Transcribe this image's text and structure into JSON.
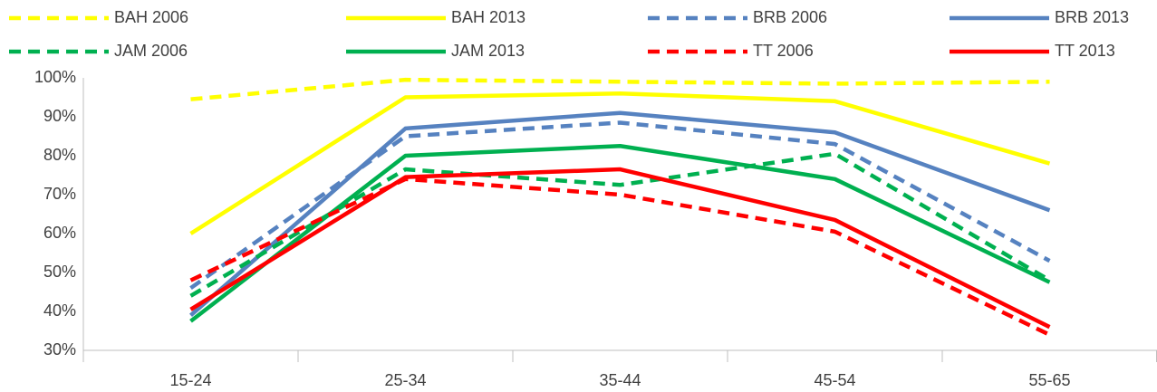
{
  "chart_data": {
    "type": "line",
    "categories": [
      "15-24",
      "25-34",
      "35-44",
      "45-54",
      "55-65"
    ],
    "series": [
      {
        "name": "BAH 2006",
        "color": "#ffff00",
        "style": "dashed",
        "values": [
          94.5,
          99.5,
          99,
          98.5,
          99
        ]
      },
      {
        "name": "BAH 2013",
        "color": "#ffff00",
        "style": "solid",
        "values": [
          60,
          95,
          96,
          94,
          78
        ]
      },
      {
        "name": "BRB 2006",
        "color": "#5682c0",
        "style": "dashed",
        "values": [
          46,
          85,
          88.5,
          83,
          53
        ]
      },
      {
        "name": "BRB 2013",
        "color": "#5682c0",
        "style": "solid",
        "values": [
          39,
          87,
          91,
          86,
          66
        ]
      },
      {
        "name": "JAM 2006",
        "color": "#00b050",
        "style": "dashed",
        "values": [
          44,
          76.5,
          72.5,
          80.5,
          48
        ]
      },
      {
        "name": "JAM 2013",
        "color": "#00b050",
        "style": "solid",
        "values": [
          37.5,
          80,
          82.5,
          74,
          47.5
        ]
      },
      {
        "name": "TT 2006",
        "color": "#ff0000",
        "style": "dashed",
        "values": [
          48,
          74,
          70,
          60.5,
          34
        ]
      },
      {
        "name": "TT 2013",
        "color": "#ff0000",
        "style": "solid",
        "values": [
          40.5,
          74.5,
          76.5,
          63.5,
          36
        ]
      }
    ],
    "ylim": [
      30,
      100
    ],
    "yticks": [
      {
        "value": 30,
        "label": "30%"
      },
      {
        "value": 40,
        "label": "40%"
      },
      {
        "value": 50,
        "label": "50%"
      },
      {
        "value": 60,
        "label": "60%"
      },
      {
        "value": 70,
        "label": "70%"
      },
      {
        "value": 80,
        "label": "80%"
      },
      {
        "value": 90,
        "label": "90%"
      },
      {
        "value": 100,
        "label": "100%"
      }
    ],
    "legend": "top"
  }
}
